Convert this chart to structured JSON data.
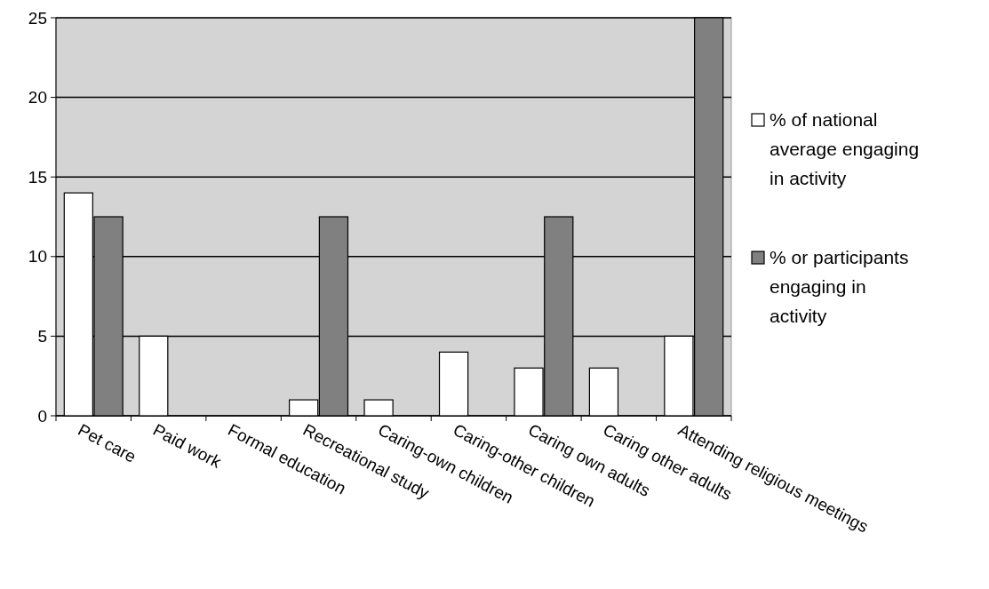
{
  "chart_data": {
    "type": "bar",
    "categories": [
      "Pet care",
      "Paid work",
      "Formal education",
      "Recreational study",
      "Caring-own children",
      "Caring-other children",
      "Caring own adults",
      "Caring other adults",
      "Attending religious meetings"
    ],
    "series": [
      {
        "name": "% of national average engaging in activity",
        "color": "#ffffff",
        "values": [
          14,
          5,
          0,
          1,
          1,
          4,
          3,
          3,
          5
        ]
      },
      {
        "name": "% or participants engaging in activity",
        "color": "#808080",
        "values": [
          12.5,
          0,
          0,
          12.5,
          0,
          0,
          12.5,
          0,
          25
        ]
      }
    ],
    "ylim": [
      0,
      25
    ],
    "yticks": [
      0,
      5,
      10,
      15,
      20,
      25
    ],
    "grid": "y",
    "legend": "right"
  }
}
